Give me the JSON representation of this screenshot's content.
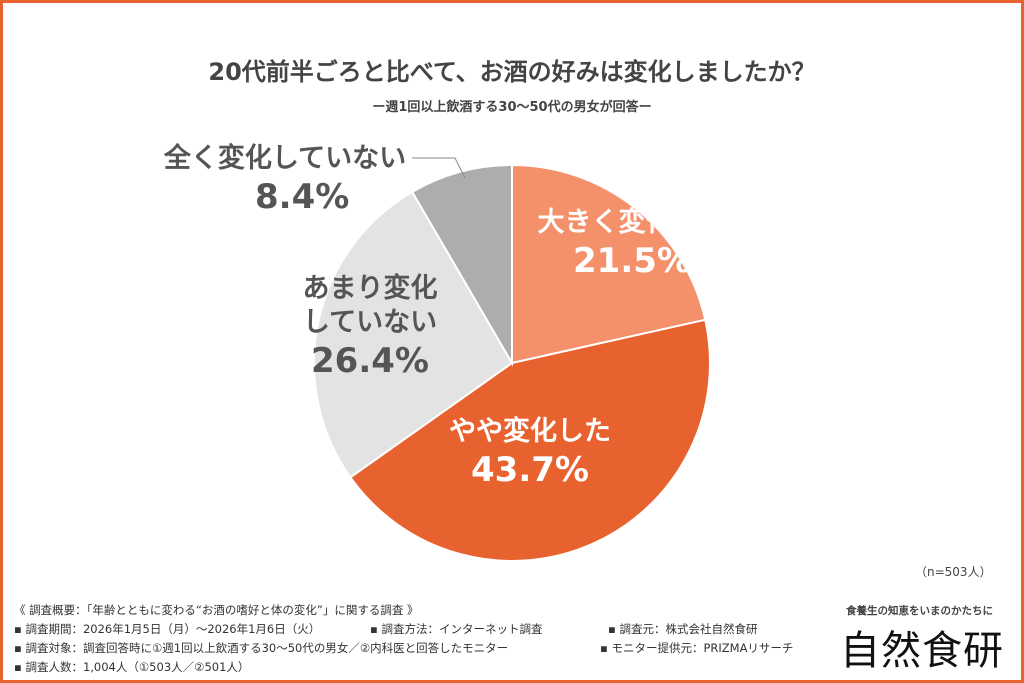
{
  "title": "20代前半ごろと比べて、お酒の好みは変化しましたか？",
  "subtitle": "ー週1回以上飲酒する30〜50代の男女が回答ー",
  "sample": "（n=503人）",
  "chart_data": {
    "type": "pie",
    "title": "20代前半ごろと比べて、お酒の好みは変化しましたか？",
    "start": "top",
    "direction": "clockwise",
    "slices": [
      {
        "label": "大きく変化した",
        "value": 21.5,
        "display": "21.5%",
        "color": "#F4916B",
        "text_color": "#ffffff"
      },
      {
        "label": "やや変化した",
        "value": 43.7,
        "display": "43.7%",
        "color": "#E8622F",
        "text_color": "#ffffff"
      },
      {
        "label": "あまり変化していない",
        "label_lines": [
          "あまり変化",
          "していない"
        ],
        "value": 26.4,
        "display": "26.4%",
        "color": "#E3E3E3",
        "text_color": "#555555"
      },
      {
        "label": "全く変化していない",
        "value": 8.4,
        "display": "8.4%",
        "color": "#ADADAD",
        "text_color": "#555555"
      }
    ]
  },
  "notes": {
    "header": "《 調査概要：「年齢とともに変わる“お酒の嗜好と体の変化”」に関する調査 》",
    "period": "▪ 調査期間：2026年1月5日（月）〜2026年1月6日（火）",
    "method": "▪ 調査方法：インターネット調査",
    "source": "▪ 調査元：株式会社自然食研",
    "target": "▪ 調査対象：調査回答時に①週1回以上飲酒する30〜50代の男女／②内科医と回答したモニター",
    "provider": "▪ モニター提供元：PRIZMAリサーチ",
    "count": "▪ 調査人数：1,004人（①503人／②501人）"
  },
  "brand": {
    "tagline": "食養生の知恵をいまのかたちに",
    "logo": "自然食研"
  },
  "colors": {
    "border": "#E8622F"
  }
}
